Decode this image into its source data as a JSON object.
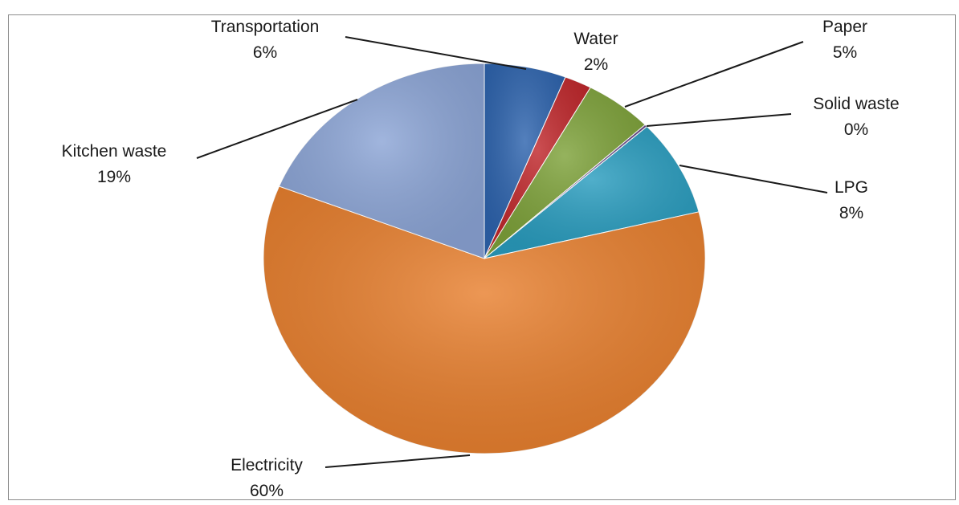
{
  "chart_data": {
    "type": "pie",
    "slices": [
      {
        "name": "Transportation",
        "value": 6,
        "label_value": "6%",
        "color": "#2e64ae"
      },
      {
        "name": "Water",
        "value": 2,
        "label_value": "2%",
        "color": "#c0282c"
      },
      {
        "name": "Paper",
        "value": 5,
        "label_value": "5%",
        "color": "#7ea23a"
      },
      {
        "name": "Solid waste",
        "value": 0.2,
        "label_value": "0%",
        "color": "#6b4f8c"
      },
      {
        "name": "LPG",
        "value": 8,
        "label_value": "8%",
        "color": "#2a9dbf"
      },
      {
        "name": "Electricity",
        "value": 60,
        "label_value": "60%",
        "color": "#e8802f"
      },
      {
        "name": "Kitchen waste",
        "value": 19,
        "label_value": "19%",
        "color": "#8ca5d6"
      }
    ]
  }
}
